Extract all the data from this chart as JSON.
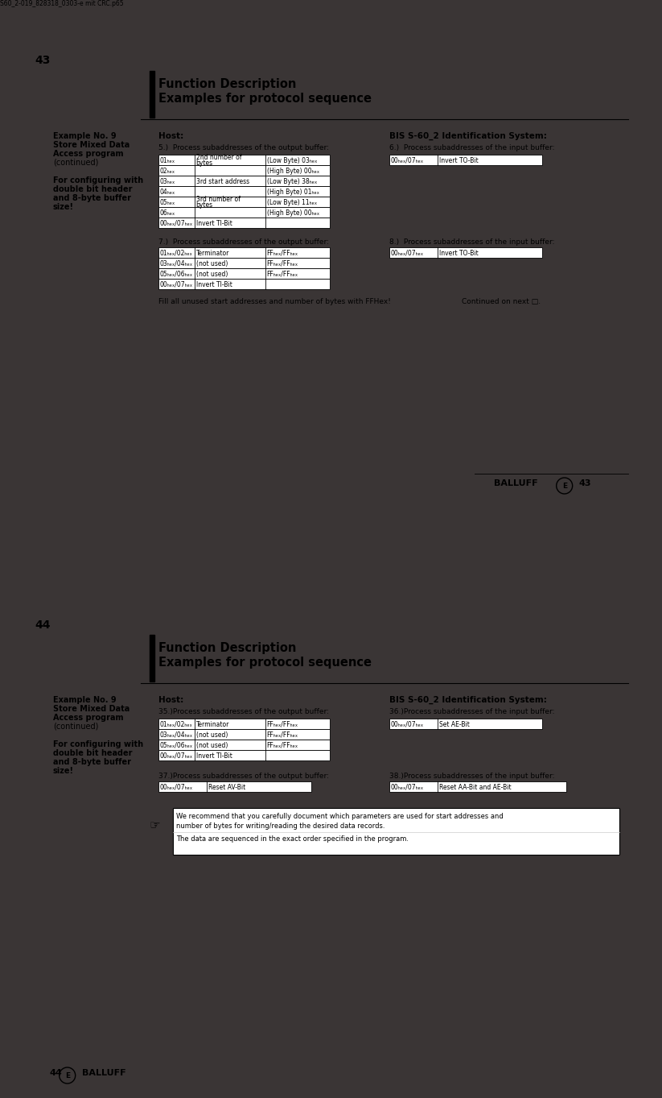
{
  "outer_bg": "#3a3535",
  "file_label": "S60_2-019_828318_0303-e mit CRC.p65",
  "page1": {
    "number": "43",
    "header_title1": "Function Description",
    "header_title2": "Examples for protocol sequence",
    "left_line1": "Example No. 9",
    "left_line2": "Store Mixed Data",
    "left_line3": "Access program",
    "left_line4": "(continued)",
    "left_line6": "For configuring with",
    "left_line7": "double bit header",
    "left_line8": "and 8-byte buffer",
    "left_line9": "size!",
    "host_label": "Host:",
    "bis_label": "BIS S-60_2 Identification System:",
    "sec5": "5.)  Process subaddresses of the output buffer:",
    "sec6": "6.)  Process subaddresses of the input buffer:",
    "t5_rows": [
      [
        "01Hex",
        "2nd number of\nbytes",
        "(Low Byte) 03Hex"
      ],
      [
        "02Hex",
        "",
        "(High Byte) 00Hex"
      ],
      [
        "03Hex",
        "3rd start address",
        "(Low Byte) 38Hex"
      ],
      [
        "04Hex",
        "",
        "(High Byte) 01Hex"
      ],
      [
        "05Hex",
        "3rd number of\nbytes",
        "(Low Byte) 11Hex"
      ],
      [
        "06Hex",
        "",
        "(High Byte) 00Hex"
      ],
      [
        "00Hex/07Hex",
        "Invert TI-Bit",
        ""
      ]
    ],
    "t6_rows": [
      [
        "00Hex/07Hex",
        "Invert TO-Bit"
      ]
    ],
    "sec7": "7.)  Process subaddresses of the output buffer:",
    "sec8": "8.)  Process subaddresses of the input buffer:",
    "t7_rows": [
      [
        "01Hex/02Hex",
        "Terminator",
        "FFHex/FFHex"
      ],
      [
        "03Hex/04Hex",
        "(not used)",
        "FFHex/FFHex"
      ],
      [
        "05Hex/06Hex",
        "(not used)",
        "FFHex/FFHex"
      ],
      [
        "00Hex/07Hex",
        "Invert TI-Bit",
        ""
      ]
    ],
    "t8_rows": [
      [
        "00Hex/07Hex",
        "Invert TO-Bit"
      ]
    ],
    "fill_note": "Fill all unused start addresses and number of bytes with FFHex!",
    "continued": "Continued on next □."
  },
  "page2": {
    "number": "44",
    "header_title1": "Function Description",
    "header_title2": "Examples for protocol sequence",
    "left_line1": "Example No. 9",
    "left_line2": "Store Mixed Data",
    "left_line3": "Access program",
    "left_line4": "(continued)",
    "left_line6": "For configuring with",
    "left_line7": "double bit header",
    "left_line8": "and 8-byte buffer",
    "left_line9": "size!",
    "host_label": "Host:",
    "bis_label": "BIS S-60_2 Identification System:",
    "sec35": "35.)Process subaddresses of the output buffer:",
    "sec36": "36.)Process subaddresses of the input buffer:",
    "t35_rows": [
      [
        "01Hex/02Hex",
        "Terminator",
        "FFHex/FFHex"
      ],
      [
        "03Hex/04Hex",
        "(not used)",
        "FFHex/FFHex"
      ],
      [
        "05Hex/06Hex",
        "(not used)",
        "FFHex/FFHex"
      ],
      [
        "00Hex/07Hex",
        "Invert TI-Bit",
        ""
      ]
    ],
    "t36_rows": [
      [
        "00Hex/07Hex",
        "Set AE-Bit"
      ]
    ],
    "sec37": "37.)Process subaddresses of the output buffer:",
    "sec38": "38.)Process subaddresses of the input buffer:",
    "t37_rows": [
      [
        "00Hex/07Hex",
        "Reset AV-Bit"
      ]
    ],
    "t38_rows": [
      [
        "00Hex/07Hex",
        "Reset AA-Bit and AE-Bit"
      ]
    ],
    "note1": "We recommend that you carefully document which parameters are used for start addresses and",
    "note2": "number of bytes for writing/reading the desired data records.",
    "note3": "The data are sequenced in the exact order specified in the program."
  }
}
